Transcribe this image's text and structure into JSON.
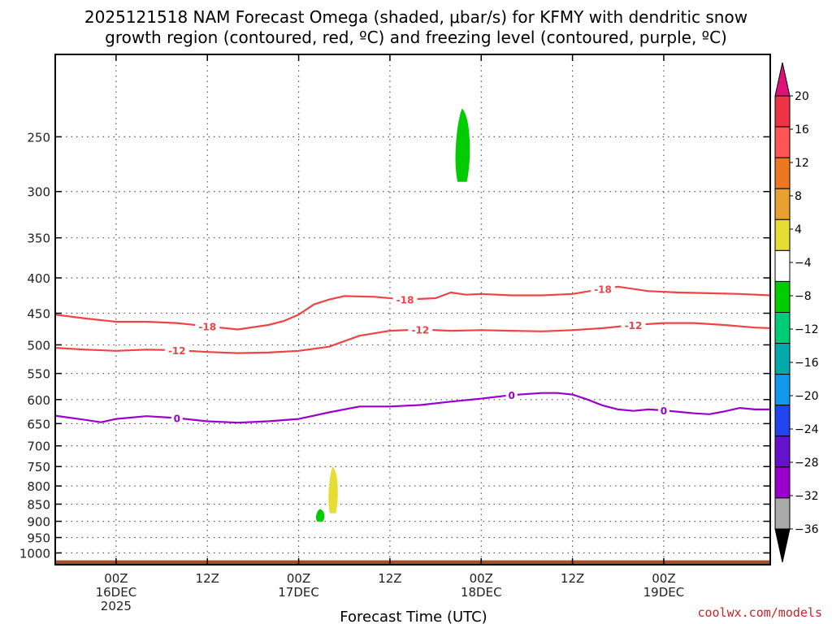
{
  "title_line1": "2025121518 NAM Forecast Omega (shaded, μbar/s) for KFMY with dendritic snow",
  "title_line2": "growth region (contoured, red, ºC) and freezing level (contoured, purple, ºC)",
  "credit": "coolwx.com/models",
  "chart_data": {
    "type": "contour",
    "xlabel": "Forecast Time (UTC)",
    "ylabel": "",
    "x_range_hours": [
      -8,
      86
    ],
    "x_ticks": [
      {
        "hour": 0,
        "line1": "00Z",
        "line2": "16DEC",
        "line3": "2025"
      },
      {
        "hour": 12,
        "line1": "12Z",
        "line2": "",
        "line3": ""
      },
      {
        "hour": 24,
        "line1": "00Z",
        "line2": "17DEC",
        "line3": ""
      },
      {
        "hour": 36,
        "line1": "12Z",
        "line2": "",
        "line3": ""
      },
      {
        "hour": 48,
        "line1": "00Z",
        "line2": "18DEC",
        "line3": ""
      },
      {
        "hour": 60,
        "line1": "12Z",
        "line2": "",
        "line3": ""
      },
      {
        "hour": 72,
        "line1": "00Z",
        "line2": "19DEC",
        "line3": ""
      }
    ],
    "y_axis": {
      "scale": "log",
      "inverted": true,
      "ylim": [
        1040,
        190
      ],
      "ticks": [
        250,
        300,
        350,
        400,
        450,
        500,
        550,
        600,
        650,
        700,
        750,
        800,
        850,
        900,
        950,
        1000
      ]
    },
    "grid": true,
    "contours": [
      {
        "name": "-18",
        "color": "#ee4444",
        "x": [
          -8,
          -4,
          0,
          4,
          8,
          12,
          16,
          20,
          22,
          24,
          26,
          28,
          30,
          34,
          38,
          42,
          44,
          46,
          48,
          52,
          56,
          60,
          64,
          66,
          70,
          74,
          78,
          82,
          86
        ],
        "y": [
          452,
          458,
          463,
          463,
          465,
          470,
          475,
          468,
          462,
          452,
          437,
          430,
          425,
          426,
          430,
          428,
          420,
          423,
          422,
          424,
          424,
          422,
          415,
          412,
          418,
          420,
          421,
          422,
          424
        ]
      },
      {
        "name": "-12",
        "color": "#ee4444",
        "x": [
          -8,
          -4,
          0,
          4,
          8,
          12,
          16,
          20,
          24,
          28,
          32,
          36,
          40,
          44,
          48,
          52,
          56,
          60,
          64,
          68,
          72,
          76,
          80,
          84,
          86
        ],
        "y": [
          505,
          508,
          510,
          508,
          509,
          512,
          514,
          513,
          510,
          503,
          485,
          477,
          475,
          477,
          476,
          477,
          478,
          476,
          473,
          468,
          465,
          465,
          468,
          472,
          473
        ]
      },
      {
        "name": "0",
        "color": "#9900cc",
        "x": [
          -8,
          -4,
          -2,
          0,
          4,
          8,
          12,
          16,
          20,
          24,
          28,
          32,
          36,
          40,
          44,
          48,
          52,
          56,
          58,
          60,
          62,
          64,
          66,
          68,
          70,
          72,
          74,
          76,
          78,
          80,
          82,
          84,
          86
        ],
        "y": [
          633,
          642,
          647,
          640,
          634,
          638,
          645,
          648,
          645,
          640,
          626,
          614,
          614,
          611,
          604,
          598,
          591,
          587,
          587,
          590,
          600,
          612,
          620,
          623,
          620,
          622,
          625,
          628,
          630,
          624,
          617,
          620,
          620
        ]
      }
    ],
    "shaded_regions": [
      {
        "value_range": [
          -8,
          -4
        ],
        "color": "#00cc00",
        "x_center": 45.5,
        "p_top": 228,
        "p_bottom": 290
      },
      {
        "value_range": [
          4,
          8
        ],
        "color": "#e5dd33",
        "x_center": 28.5,
        "p_top": 752,
        "p_bottom": 875
      },
      {
        "value_range": [
          -8,
          -4
        ],
        "color": "#00cc00",
        "x_center": 26.8,
        "p_top": 865,
        "p_bottom": 900
      }
    ],
    "terrain": {
      "color": "#a0522d",
      "p_top": 1025
    },
    "colorbar": {
      "tick_labels": [
        "20",
        "16",
        "12",
        "8",
        "4",
        "−4",
        "−8",
        "−12",
        "−16",
        "−20",
        "−24",
        "−28",
        "−32",
        "−36"
      ],
      "colors": [
        "#ee3344",
        "#ff5555",
        "#ee7722",
        "#e8a030",
        "#e5dd33",
        "#ffffff",
        "#00cc00",
        "#00cc77",
        "#00aaaa",
        "#1199ee",
        "#2244ee",
        "#6611cc",
        "#9900cc",
        "#aaaaaa"
      ],
      "over_color": "#dd1177",
      "under_color": "#000000"
    }
  }
}
